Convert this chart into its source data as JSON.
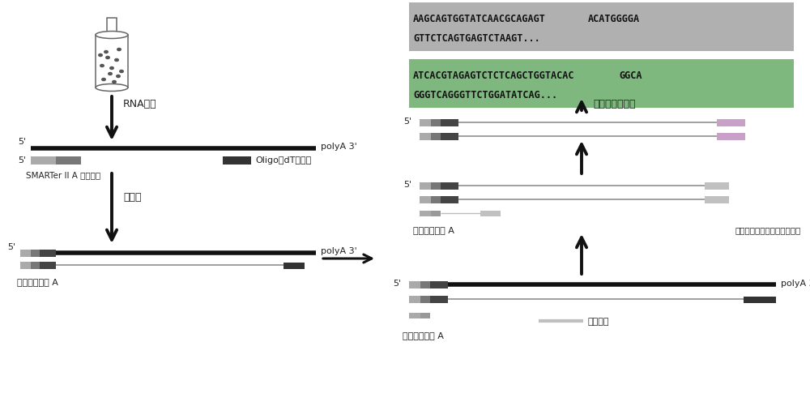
{
  "bg_color": "#ffffff",
  "seq1_full": "AAGCAGTGGTATCAACGCAGAGTACATGGGGA\nGTTCTCAGTGAGTCTAAGT...",
  "seq1_highlighted": "AAGCAGTGGTATCAACGCAGAGT",
  "seq2_full": "ATCACGTAGAGTCTCTCAGCTGGTACACGGCA\nGGGTCAGGGTTCTGGATATCAG...",
  "seq2_highlighted": "ATCACGTAGAGTCTCTCAGCTGGTACAC",
  "seq1_bg": "#b0b0b0",
  "seq2_bg": "#7fb87f",
  "label_rna": "RNA提取",
  "label_rt": "逆转录",
  "label_polya_3": "polyA 3'",
  "label_5p": "5'",
  "label_smarter": "SMARTer II A 寡聚核苷",
  "label_oligo": "Oligo（dT）引物",
  "label_nested_a": "巢式通用引物 A",
  "label_inner": "内引（紫色为样本标记接头）",
  "label_outer": "外侧引物",
  "label_multiplex": "多样本混合测序",
  "col_black": "#111111",
  "col_gray_med": "#888888",
  "col_gray_light": "#b0b0b0",
  "col_dark_seg": "#444444",
  "col_pink": "#c8a0c8",
  "col_outer_primer": "#c0c0c0",
  "col_inner_seg": "#c0c0c0"
}
